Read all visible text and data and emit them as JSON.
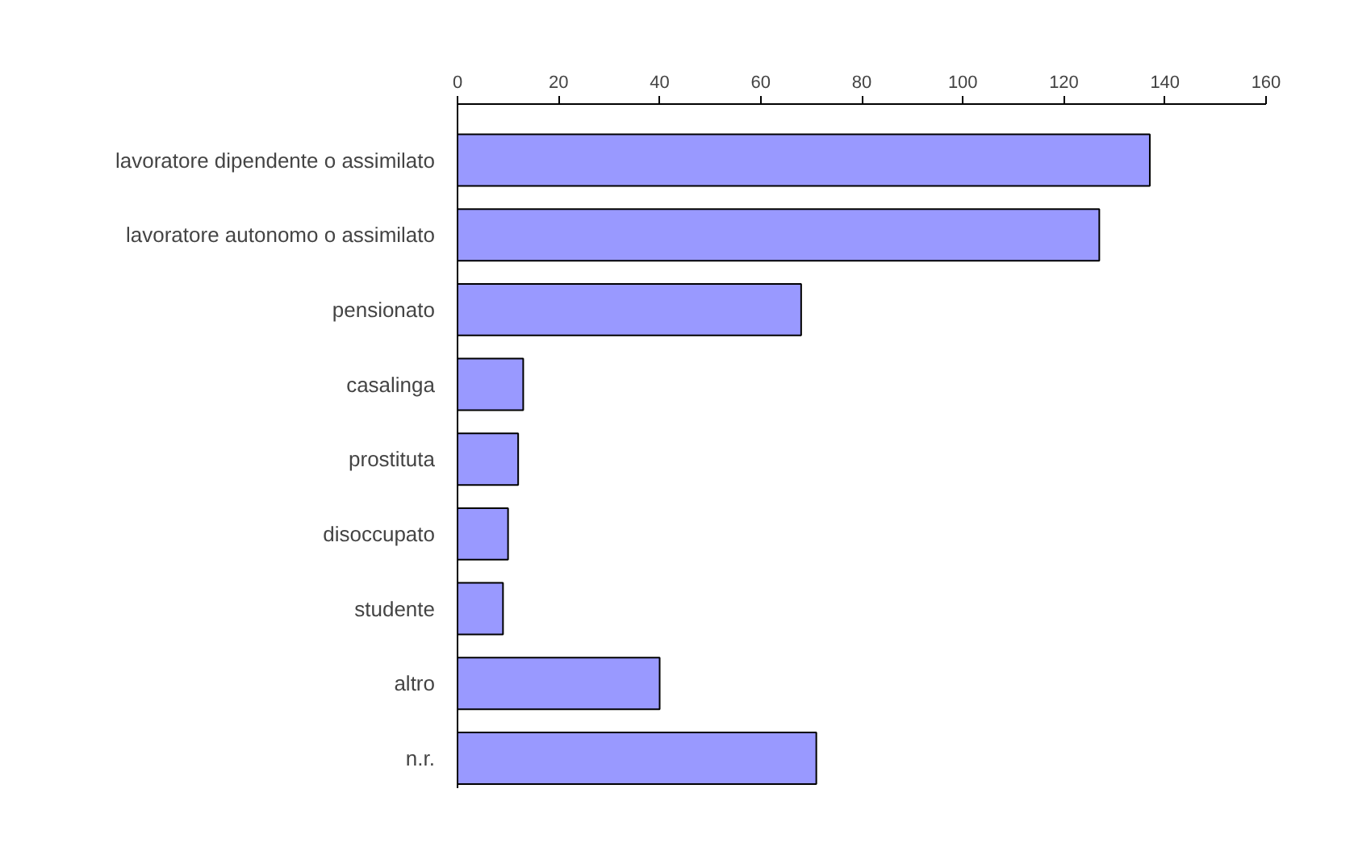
{
  "chart_data": {
    "type": "bar",
    "orientation": "horizontal",
    "categories": [
      "lavoratore dipendente o assimilato",
      "lavoratore autonomo o assimilato",
      "pensionato",
      "casalinga",
      "prostituta",
      "disoccupato",
      "studente",
      "altro",
      "n.r."
    ],
    "values": [
      137,
      127,
      68,
      13,
      12,
      10,
      9,
      40,
      71
    ],
    "color": "#9999ff",
    "xlim": [
      0,
      160
    ],
    "xticks": [
      0,
      20,
      40,
      60,
      80,
      100,
      120,
      140,
      160
    ]
  }
}
